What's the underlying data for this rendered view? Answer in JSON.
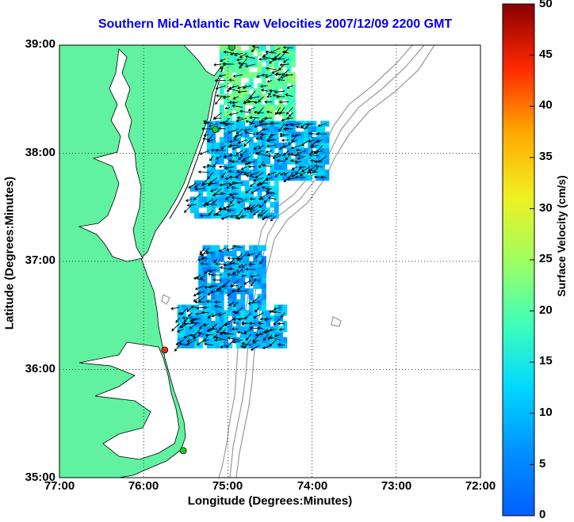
{
  "title": "Southern Mid-Atlantic Raw Velocities 2007/12/09 2200 GMT",
  "x_axis": {
    "label": "Longitude (Degrees:Minutes)",
    "ticks": [
      "77:00",
      "76:00",
      "75:00",
      "74:00",
      "73:00",
      "72:00"
    ],
    "range": [
      -77,
      -72
    ]
  },
  "y_axis": {
    "label": "Latitude (Degrees:Minutes)",
    "ticks": [
      "35:00",
      "36:00",
      "37:00",
      "38:00",
      "39:00"
    ],
    "range": [
      35,
      39
    ]
  },
  "colorbar": {
    "label": "Surface Velocity (cm/s)",
    "ticks": [
      "0",
      "5",
      "10",
      "15",
      "20",
      "25",
      "30",
      "35",
      "40",
      "45",
      "50"
    ],
    "range": [
      0,
      50
    ],
    "colormap": "jet"
  },
  "colors": {
    "land": "#60f2a0",
    "title": "#0000ee",
    "bathymetry": "#999999",
    "site_active": "#22cc22",
    "site_inactive": "#ff2222"
  },
  "grid": "dotted",
  "radar_sites": [
    {
      "lon": -74.95,
      "lat": 38.98,
      "status": "active"
    },
    {
      "lon": -75.15,
      "lat": 38.22,
      "status": "active"
    },
    {
      "lon": -75.75,
      "lat": 36.18,
      "status": "inactive"
    },
    {
      "lon": -75.53,
      "lat": 35.25,
      "status": "active"
    }
  ],
  "velocity_regions": [
    {
      "lat_min": 38.3,
      "lat_max": 39.0,
      "lon_min": -75.1,
      "lon_max": -74.2,
      "speed_cms": 20
    },
    {
      "lat_min": 37.75,
      "lat_max": 38.3,
      "lon_min": -75.25,
      "lon_max": -73.8,
      "speed_cms": 10
    },
    {
      "lat_min": 37.4,
      "lat_max": 37.75,
      "lon_min": -75.45,
      "lon_max": -74.4,
      "speed_cms": 11
    },
    {
      "lat_min": 36.6,
      "lat_max": 37.15,
      "lon_min": -75.35,
      "lon_max": -74.55,
      "speed_cms": 8
    },
    {
      "lat_min": 36.2,
      "lat_max": 36.6,
      "lon_min": -75.6,
      "lon_max": -74.3,
      "speed_cms": 10
    }
  ]
}
